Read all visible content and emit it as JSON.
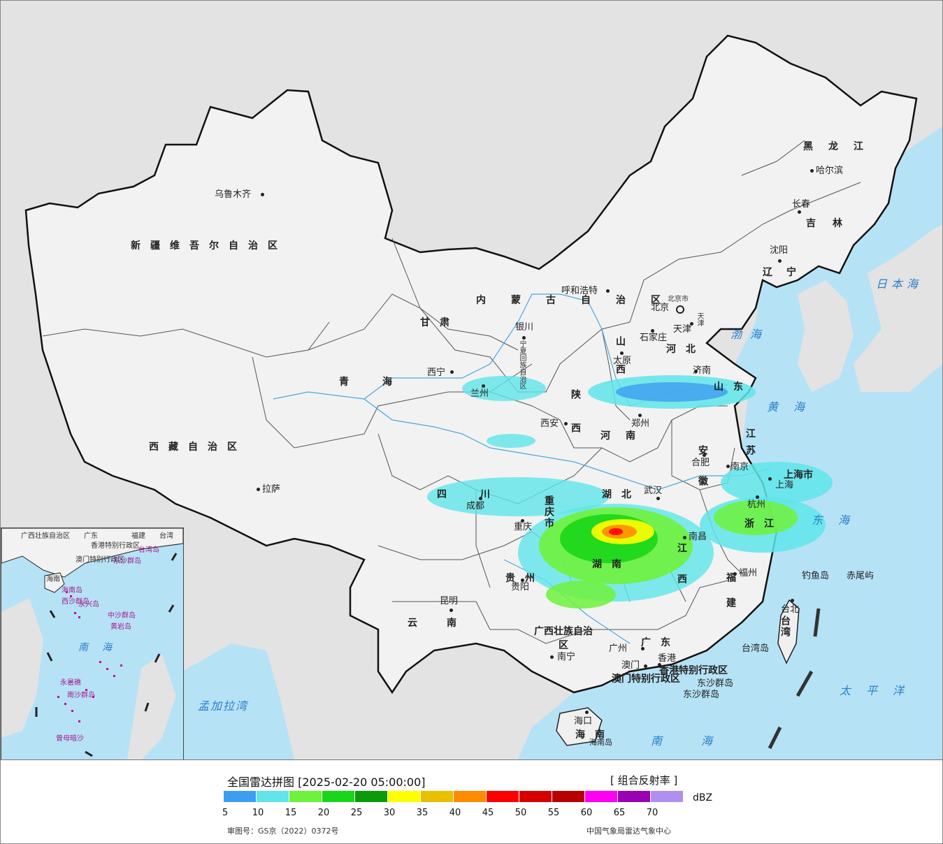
{
  "legend": {
    "title": "全国雷达拼图 [2025-02-20 05:00:00]",
    "product": "[ 组合反射率 ]",
    "unit": "dBZ",
    "colors": [
      "#3d9df0",
      "#5fe5ea",
      "#6ff23c",
      "#19d619",
      "#0a9a0a",
      "#ffff00",
      "#e8c000",
      "#ff8c00",
      "#ff0000",
      "#d60000",
      "#b80000",
      "#ff00f5",
      "#9a00b4",
      "#b18ff0"
    ],
    "ticks": [
      "5",
      "10",
      "15",
      "20",
      "25",
      "30",
      "35",
      "40",
      "45",
      "50",
      "55",
      "60",
      "65",
      "70"
    ],
    "approval": "审图号：GS京（2022）0372号",
    "source": "中国气象局雷达气象中心"
  },
  "cities": [
    "乌鲁木齐",
    "呼和浩特",
    "北京",
    "天津",
    "石家庄",
    "太原",
    "济南",
    "银川",
    "西宁",
    "兰州",
    "西安",
    "郑州",
    "合肥",
    "南京",
    "上海",
    "杭州",
    "武汉",
    "成都",
    "重庆",
    "拉萨",
    "南昌",
    "福州",
    "贵阳",
    "昆明",
    "南宁",
    "广州",
    "澳门",
    "香港",
    "海口",
    "台北",
    "哈尔滨",
    "长春",
    "沈阳"
  ],
  "provinces": [
    "新疆维吾尔自治区",
    "西藏自治区",
    "青海",
    "甘肃",
    "内蒙古自治区",
    "黑龙江",
    "吉林",
    "辽宁",
    "河北",
    "山西",
    "山东",
    "陕西",
    "河南",
    "江苏",
    "安徽",
    "湖北",
    "四川",
    "重庆市",
    "贵州",
    "云南",
    "湖南",
    "江西",
    "浙江",
    "福建",
    "广西壮族自治区",
    "广东",
    "海南",
    "台湾",
    "上海市",
    "香港特别行政区",
    "澳门特别行政区",
    "宁夏回族自治区",
    "北京市",
    "天津"
  ],
  "seas": [
    "日本海",
    "渤海",
    "黄海",
    "东海",
    "南海",
    "太平洋",
    "孟加拉湾"
  ],
  "islands": [
    "钓鱼岛",
    "赤尾屿",
    "台湾岛",
    "东沙群岛",
    "海南岛",
    "中沙群岛",
    "南沙群岛"
  ],
  "inset": {
    "labels": [
      "广西壮族自治区",
      "广东",
      "福建",
      "台湾",
      "香港特别行政区",
      "澳门特别行政区",
      "台湾岛",
      "东沙群岛",
      "海南",
      "海南岛",
      "西沙群岛",
      "永兴岛",
      "中沙群岛",
      "黄岩岛",
      "南海",
      "永暑礁",
      "南沙群岛",
      "曾母暗沙"
    ]
  }
}
